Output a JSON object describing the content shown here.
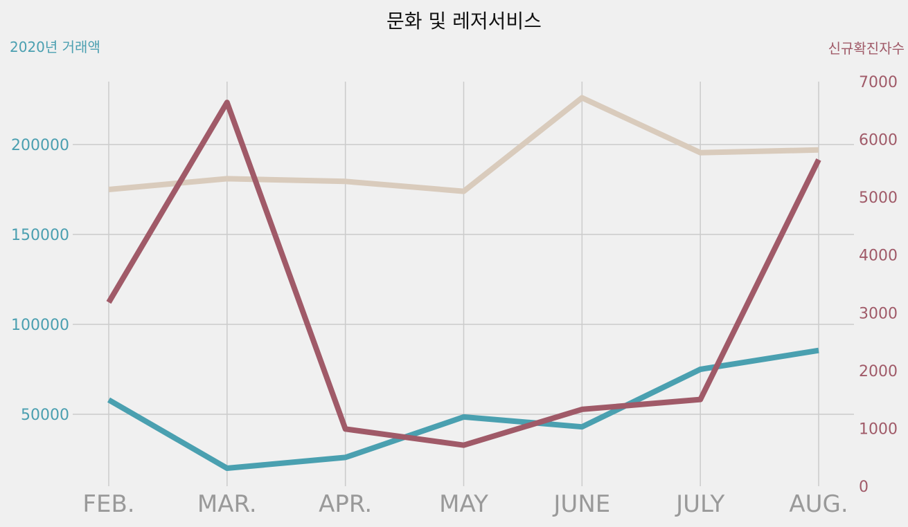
{
  "chart_data": {
    "type": "line",
    "title": "문화 및 레저서비스",
    "categories": [
      "FEB.",
      "MAR.",
      "APR.",
      "MAY",
      "JUNE",
      "JULY",
      "AUG."
    ],
    "left_axis": {
      "label": "2020년 거래액",
      "ylim": [
        10000,
        235000
      ],
      "ticks": [
        "50000",
        "100000",
        "150000",
        "200000"
      ],
      "color": "#4a9fb0"
    },
    "right_axis": {
      "label": "신규확진자수",
      "ylim": [
        0,
        7000
      ],
      "ticks": [
        "0",
        "1000",
        "2000",
        "3000",
        "4000",
        "5000",
        "6000",
        "7000"
      ],
      "color": "#a05a68"
    },
    "grid": true,
    "series": [
      {
        "axis": "left",
        "color": "#d9cbbc",
        "values": [
          175000,
          181000,
          179500,
          174000,
          226000,
          195500,
          197000
        ]
      },
      {
        "axis": "left",
        "color": "#4aa0b0",
        "values": [
          58000,
          20000,
          26000,
          48500,
          43000,
          75000,
          85500
        ]
      },
      {
        "axis": "right",
        "color": "#a05a68",
        "values": [
          3180,
          6640,
          990,
          710,
          1330,
          1500,
          5650
        ]
      }
    ]
  }
}
